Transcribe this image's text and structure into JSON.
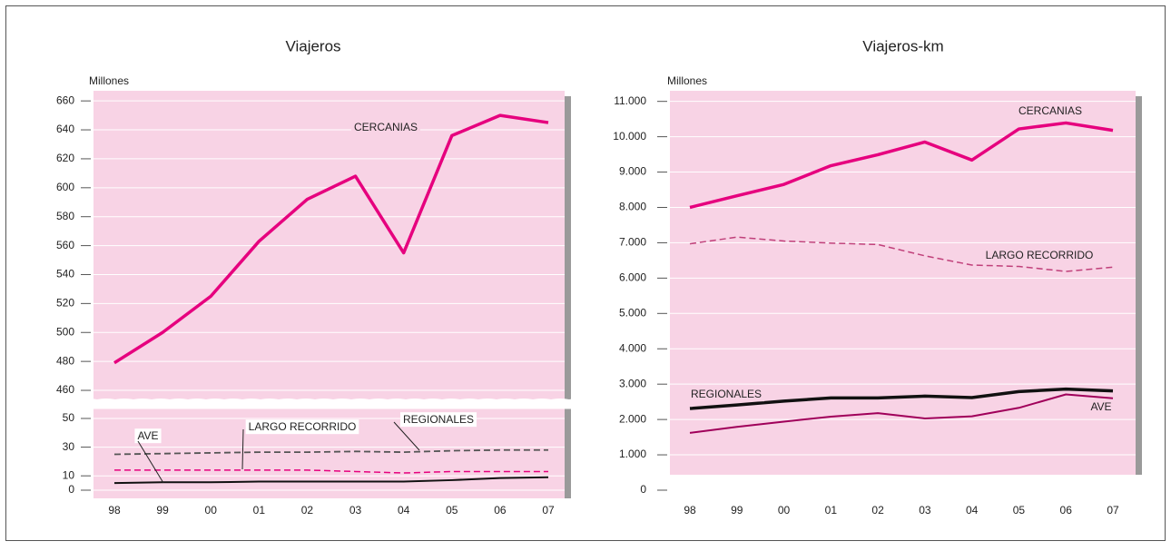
{
  "chart_data": [
    {
      "type": "line",
      "title": "Viajeros",
      "y_label": "Millones",
      "categories": [
        "98",
        "99",
        "00",
        "01",
        "02",
        "03",
        "04",
        "05",
        "06",
        "07"
      ],
      "ylim": [
        455,
        667
      ],
      "yticks": [
        460,
        480,
        500,
        520,
        540,
        560,
        580,
        600,
        620,
        640,
        660
      ],
      "y2lim": [
        0,
        56
      ],
      "y2ticks": [
        0,
        10,
        30,
        50
      ],
      "axis_break": true,
      "grid": true,
      "series": [
        {
          "name": "CERCANIAS",
          "color": "#e6007e",
          "style": "solid",
          "values": [
            479,
            500,
            525,
            563,
            592,
            608,
            555,
            636,
            650,
            645
          ]
        },
        {
          "name": "LARGO RECORRIDO",
          "color": "#e6007e",
          "style": "dashed",
          "axis": "y2",
          "values": [
            14,
            14,
            14,
            14,
            14,
            13,
            12,
            13,
            13,
            13
          ]
        },
        {
          "name": "REGIONALES",
          "color": "#555555",
          "style": "dashed",
          "axis": "y2",
          "values": [
            25,
            25.5,
            26,
            26.5,
            26.5,
            27,
            26.5,
            27.5,
            28,
            28
          ]
        },
        {
          "name": "AVE",
          "color": "#111111",
          "style": "solid",
          "axis": "y2",
          "values": [
            5,
            5.5,
            5.5,
            6,
            6,
            6,
            6,
            7,
            8.5,
            9
          ]
        }
      ]
    },
    {
      "type": "line",
      "title": "Viajeros-km",
      "y_label": "Millones",
      "categories": [
        "98",
        "99",
        "00",
        "01",
        "02",
        "03",
        "04",
        "05",
        "06",
        "07"
      ],
      "ylim": [
        0,
        11300
      ],
      "yticks": [
        0,
        {
          "value": 1000,
          "label": "1.000"
        },
        {
          "value": 2000,
          "label": "2.000"
        },
        {
          "value": 3000,
          "label": "3.000"
        },
        {
          "value": 4000,
          "label": "4.000"
        },
        {
          "value": 5000,
          "label": "5.000"
        },
        {
          "value": 6000,
          "label": "6.000"
        },
        {
          "value": 7000,
          "label": "7.000"
        },
        {
          "value": 8000,
          "label": "8.000"
        },
        {
          "value": 9000,
          "label": "9.000"
        },
        {
          "value": 10000,
          "label": "10.000"
        },
        {
          "value": 11000,
          "label": "11.000"
        }
      ],
      "grid": true,
      "series": [
        {
          "name": "CERCANIAS",
          "color": "#e6007e",
          "style": "solid",
          "values": [
            8000,
            8330,
            8650,
            9180,
            9490,
            9850,
            9340,
            10220,
            10390,
            10180
          ]
        },
        {
          "name": "LARGO RECORRIDO",
          "color": "#c0407a",
          "style": "dashed",
          "values": [
            6970,
            7160,
            7050,
            6990,
            6950,
            6630,
            6370,
            6330,
            6190,
            6310
          ]
        },
        {
          "name": "REGIONALES",
          "color": "#111111",
          "style": "solid",
          "values": [
            2310,
            2410,
            2520,
            2610,
            2610,
            2660,
            2620,
            2790,
            2860,
            2810
          ]
        },
        {
          "name": "AVE",
          "color": "#a0005a",
          "style": "solid",
          "values": [
            1620,
            1790,
            1940,
            2080,
            2180,
            2030,
            2090,
            2330,
            2710,
            2600
          ]
        }
      ]
    }
  ]
}
